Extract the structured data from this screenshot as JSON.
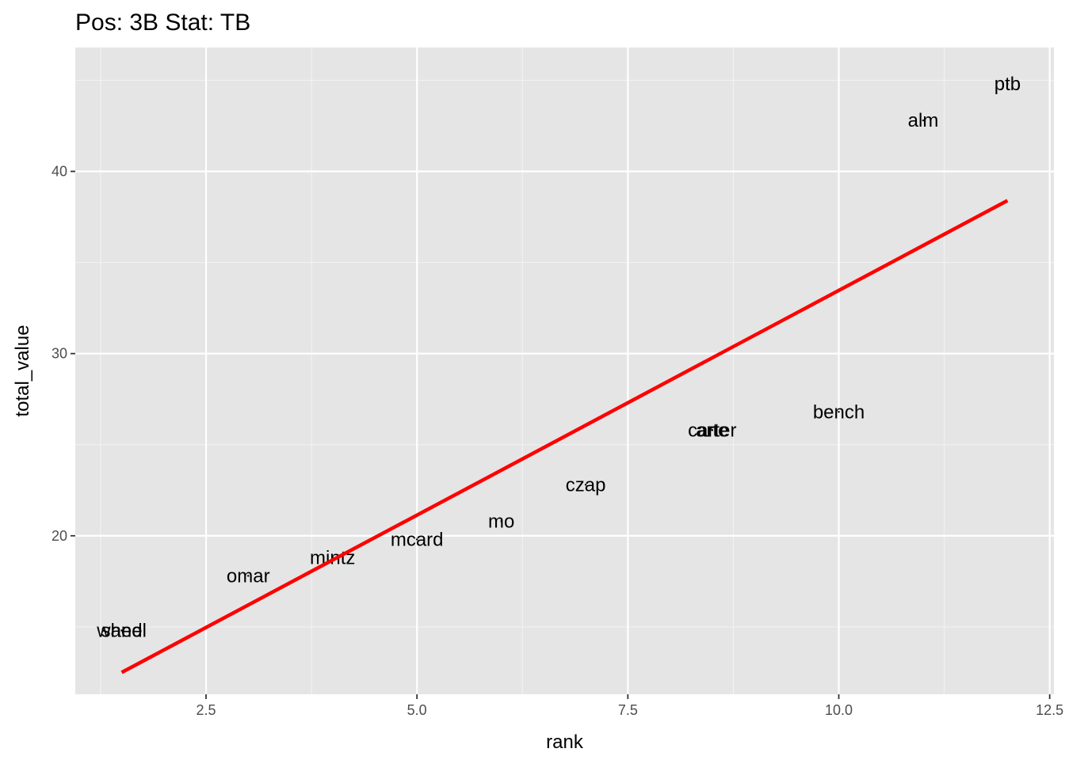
{
  "chart_data": {
    "type": "scatter",
    "title": "Pos: 3B Stat: TB",
    "xlabel": "rank",
    "ylabel": "total_value",
    "xlim": [
      0.95,
      12.55
    ],
    "ylim": [
      11.3,
      46.8
    ],
    "x_ticks": [
      2.5,
      5.0,
      7.5,
      10.0,
      12.5
    ],
    "x_tick_labels": [
      "2.5",
      "5.0",
      "7.5",
      "10.0",
      "12.5"
    ],
    "y_ticks": [
      20,
      30,
      40
    ],
    "y_tick_labels": [
      "20",
      "30",
      "40"
    ],
    "grid": true,
    "legend": "none",
    "points": [
      {
        "label": "sand",
        "x": 1.5,
        "y": 14.8
      },
      {
        "label": "wheel",
        "x": 1.5,
        "y": 14.8
      },
      {
        "label": "omar",
        "x": 3.0,
        "y": 17.8
      },
      {
        "label": "mintz",
        "x": 4.0,
        "y": 18.8
      },
      {
        "label": "mcard",
        "x": 5.0,
        "y": 19.8
      },
      {
        "label": "mo",
        "x": 6.0,
        "y": 20.8
      },
      {
        "label": "czap",
        "x": 7.0,
        "y": 22.8
      },
      {
        "label": "carter",
        "x": 8.5,
        "y": 25.8
      },
      {
        "label": "arte",
        "x": 8.5,
        "y": 25.8
      },
      {
        "label": "bench",
        "x": 10.0,
        "y": 26.8
      },
      {
        "label": "alm",
        "x": 11.0,
        "y": 42.8
      },
      {
        "label": "ptb",
        "x": 12.0,
        "y": 44.8
      }
    ],
    "fit_line": {
      "x": [
        1.5,
        12.0
      ],
      "y": [
        12.5,
        38.4
      ],
      "color": "#ff0000"
    }
  }
}
